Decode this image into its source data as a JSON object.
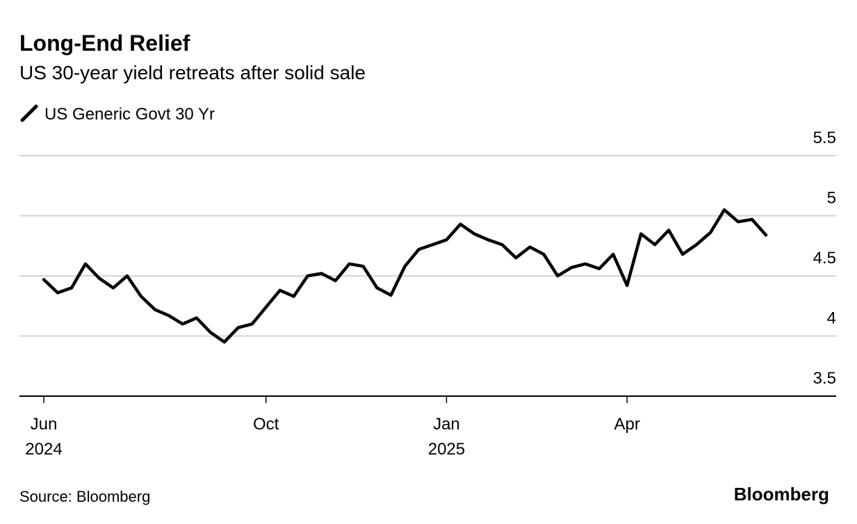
{
  "chart_data": {
    "type": "line",
    "title": "Long-End Relief",
    "subtitle": "US 30-year yield retreats after solid sale",
    "source": "Source: Bloomberg",
    "brand": "Bloomberg",
    "categories": [
      "Jun",
      null,
      null,
      null,
      null,
      null,
      null,
      null,
      null,
      null,
      null,
      null,
      null,
      null,
      null,
      null,
      "Oct",
      null,
      null,
      null,
      null,
      null,
      null,
      null,
      null,
      null,
      null,
      null,
      null,
      "Jan",
      null,
      null,
      null,
      null,
      null,
      null,
      null,
      null,
      null,
      null,
      null,
      null,
      "Apr",
      null,
      null,
      null,
      null,
      null,
      null,
      null,
      null,
      null,
      null
    ],
    "category_years": [
      "2024",
      null,
      null,
      null,
      null,
      null,
      null,
      null,
      null,
      null,
      null,
      null,
      null,
      null,
      null,
      null,
      null,
      null,
      null,
      null,
      null,
      null,
      null,
      null,
      null,
      null,
      null,
      null,
      null,
      "2025",
      null,
      null,
      null,
      null,
      null,
      null,
      null,
      null,
      null,
      null,
      null,
      null,
      null,
      null,
      null,
      null,
      null,
      null,
      null,
      null,
      null,
      null,
      null
    ],
    "series": [
      {
        "name": "US Generic Govt 30 Yr",
        "color": "#000000",
        "values": [
          4.47,
          4.36,
          4.4,
          4.6,
          4.48,
          4.4,
          4.5,
          4.33,
          4.22,
          4.17,
          4.1,
          4.15,
          4.03,
          3.95,
          4.07,
          4.1,
          4.24,
          4.38,
          4.33,
          4.5,
          4.52,
          4.46,
          4.6,
          4.58,
          4.4,
          4.34,
          4.58,
          4.72,
          4.76,
          4.8,
          4.93,
          4.85,
          4.8,
          4.76,
          4.65,
          4.74,
          4.68,
          4.5,
          4.57,
          4.6,
          4.56,
          4.68,
          4.42,
          4.85,
          4.76,
          4.88,
          4.68,
          4.76,
          4.86,
          5.05,
          4.95,
          4.97,
          4.84
        ]
      }
    ],
    "ylim": [
      3.5,
      5.5
    ],
    "yticks": [
      3.5,
      4,
      4.5,
      5,
      5.5
    ],
    "grid": true
  }
}
